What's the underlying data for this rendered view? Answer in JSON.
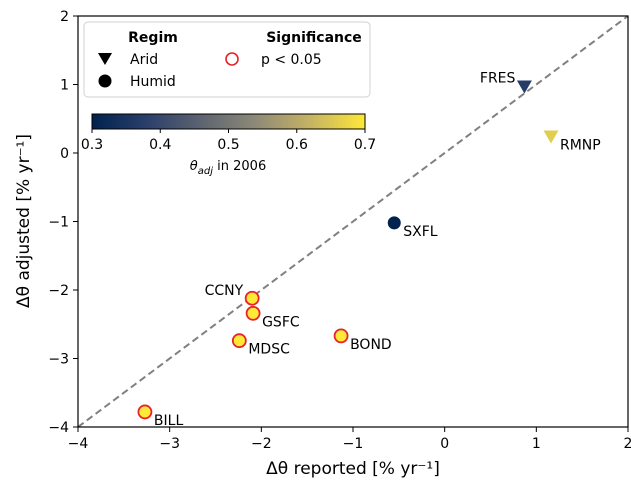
{
  "chart_data": {
    "type": "scatter",
    "xlabel": "Δθ reported [% yr⁻¹]",
    "ylabel": "Δθ adjusted [% yr⁻¹]",
    "xlim": [
      -4,
      2
    ],
    "ylim": [
      -4,
      2
    ],
    "x_ticks": [
      -4,
      -3,
      -2,
      -1,
      0,
      1,
      2
    ],
    "y_ticks": [
      -4,
      -3,
      -2,
      -1,
      0,
      1,
      2
    ],
    "x_tick_labels": [
      "−4",
      "−3",
      "−2",
      "−1",
      "0",
      "1",
      "2"
    ],
    "y_tick_labels": [
      "−4",
      "−3",
      "−2",
      "−1",
      "0",
      "1",
      "2"
    ],
    "grid": false,
    "reference_line": {
      "style": "dashed",
      "color": "#808080",
      "from": [
        -4,
        -4
      ],
      "to": [
        2,
        2
      ]
    },
    "legend": {
      "placement": "top-left",
      "regim_title": "Regim",
      "significance_title": "Significance",
      "arid_label": "Arid",
      "humid_label": "Humid",
      "significance_label": "p < 0.05",
      "significance_color": "#e8212a"
    },
    "colorbar": {
      "colormap": "cividis",
      "range": [
        0.3,
        0.7
      ],
      "ticks": [
        0.3,
        0.4,
        0.5,
        0.6,
        0.7
      ],
      "tick_labels": [
        "0.3",
        "0.4",
        "0.5",
        "0.6",
        "0.7"
      ],
      "label_main": "θ",
      "label_sub": "adj",
      "label_rest": " in 2006"
    },
    "points": [
      {
        "label": "FRES",
        "x": 0.87,
        "y": 0.97,
        "regim": "Arid",
        "theta": 0.37,
        "significant": false,
        "label_pos": "left"
      },
      {
        "label": "RMNP",
        "x": 1.16,
        "y": 0.24,
        "regim": "Arid",
        "theta": 0.66,
        "significant": false,
        "label_pos": "right"
      },
      {
        "label": "SXFL",
        "x": -0.55,
        "y": -1.02,
        "regim": "Humid",
        "theta": 0.3,
        "significant": false,
        "label_pos": "right"
      },
      {
        "label": "CCNY",
        "x": -2.1,
        "y": -2.12,
        "regim": "Humid",
        "theta": 0.7,
        "significant": true,
        "label_pos": "left"
      },
      {
        "label": "GSFC",
        "x": -2.09,
        "y": -2.34,
        "regim": "Humid",
        "theta": 0.7,
        "significant": true,
        "label_pos": "right"
      },
      {
        "label": "MDSC",
        "x": -2.24,
        "y": -2.74,
        "regim": "Humid",
        "theta": 0.7,
        "significant": true,
        "label_pos": "right"
      },
      {
        "label": "BOND",
        "x": -1.13,
        "y": -2.67,
        "regim": "Humid",
        "theta": 0.7,
        "significant": true,
        "label_pos": "right"
      },
      {
        "label": "BILL",
        "x": -3.27,
        "y": -3.78,
        "regim": "Humid",
        "theta": 0.7,
        "significant": true,
        "label_pos": "right"
      }
    ]
  }
}
